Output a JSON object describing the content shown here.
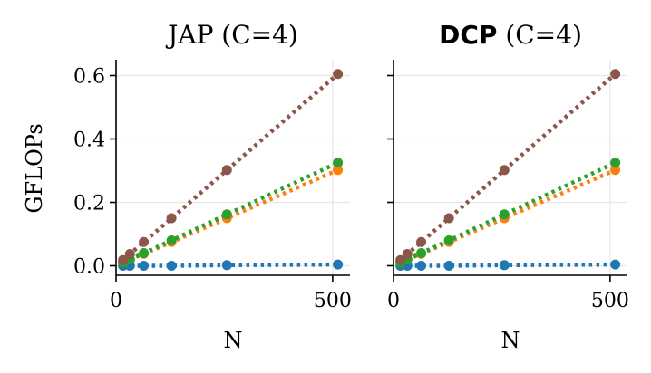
{
  "figure": {
    "ylabel": "GFLOPs"
  },
  "colors": {
    "blue": "#1f77b4",
    "orange": "#ff7f0e",
    "green": "#2ca02c",
    "brown": "#8c564b",
    "grid": "#e6e6e6",
    "axis": "#000000"
  },
  "chart_data": [
    {
      "type": "line",
      "title_bold": "",
      "title_rest": "JAP (C=4)",
      "xlabel": "N",
      "ylabel": "GFLOPs",
      "xlim": [
        0,
        540
      ],
      "ylim": [
        -0.03,
        0.65
      ],
      "xticks": [
        0,
        500
      ],
      "yticks": [
        0.0,
        0.2,
        0.4,
        0.6
      ],
      "xtick_labels": [
        "0",
        "500"
      ],
      "ytick_labels": [
        "0.0",
        "0.2",
        "0.4",
        "0.6"
      ],
      "grid": true,
      "x": [
        16,
        32,
        64,
        128,
        256,
        512
      ],
      "series": [
        {
          "name": "blue",
          "color": "#1f77b4",
          "values": [
            0.0,
            0.0,
            0.0,
            0.0,
            0.002,
            0.004
          ]
        },
        {
          "name": "orange",
          "color": "#ff7f0e",
          "values": [
            0.01,
            0.02,
            0.038,
            0.075,
            0.15,
            0.302
          ]
        },
        {
          "name": "green",
          "color": "#2ca02c",
          "values": [
            0.01,
            0.02,
            0.04,
            0.08,
            0.162,
            0.325
          ]
        },
        {
          "name": "brown",
          "color": "#8c564b",
          "values": [
            0.018,
            0.037,
            0.075,
            0.15,
            0.302,
            0.605
          ]
        }
      ]
    },
    {
      "type": "line",
      "title_bold": "DCP",
      "title_rest": " (C=4)",
      "xlabel": "N",
      "ylabel": "",
      "xlim": [
        0,
        540
      ],
      "ylim": [
        -0.03,
        0.65
      ],
      "xticks": [
        0,
        500
      ],
      "yticks": [
        0.0,
        0.2,
        0.4,
        0.6
      ],
      "xtick_labels": [
        "0",
        "500"
      ],
      "ytick_labels": [],
      "grid": true,
      "x": [
        16,
        32,
        64,
        128,
        256,
        512
      ],
      "series": [
        {
          "name": "blue",
          "color": "#1f77b4",
          "values": [
            0.0,
            0.0,
            0.0,
            0.0,
            0.002,
            0.004
          ]
        },
        {
          "name": "orange",
          "color": "#ff7f0e",
          "values": [
            0.01,
            0.02,
            0.038,
            0.075,
            0.15,
            0.302
          ]
        },
        {
          "name": "green",
          "color": "#2ca02c",
          "values": [
            0.01,
            0.02,
            0.04,
            0.08,
            0.162,
            0.325
          ]
        },
        {
          "name": "brown",
          "color": "#8c564b",
          "values": [
            0.018,
            0.037,
            0.075,
            0.15,
            0.302,
            0.605
          ]
        }
      ]
    }
  ]
}
